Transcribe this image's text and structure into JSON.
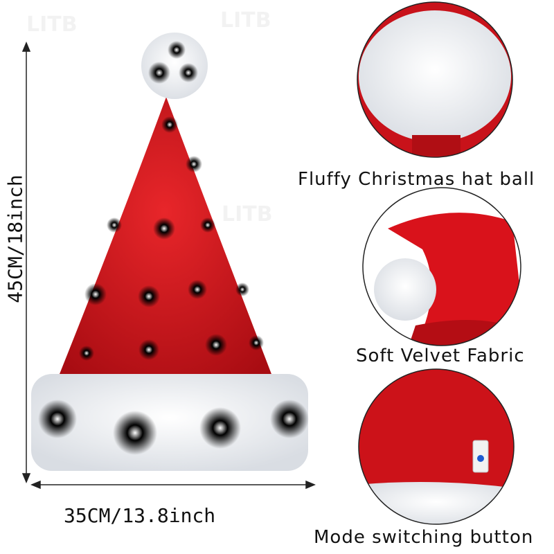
{
  "watermark": "LITB",
  "dimensions": {
    "height_label": "45CM/18inch",
    "width_label": "35CM/13.8inch"
  },
  "features": [
    {
      "label": "Fluffy Christmas hat ball"
    },
    {
      "label": "Soft Velvet Fabric"
    },
    {
      "label": "Mode switching button"
    }
  ],
  "colors": {
    "hat_red": "#d0141a",
    "fur_white": "#f4f4f4",
    "button_blue": "#1e5bd0"
  },
  "led_colors": [
    "#ffb347",
    "#ff4d6d",
    "#3a5bff",
    "#ff4de1",
    "#7dff9a",
    "#b04dff",
    "#ff8fb8"
  ]
}
